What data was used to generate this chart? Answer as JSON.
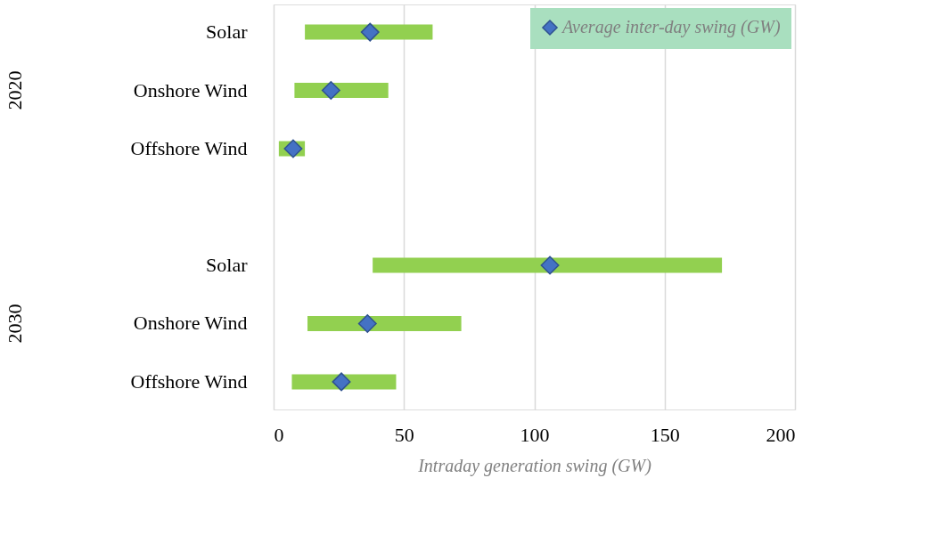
{
  "chart_data": {
    "type": "bar",
    "orientation": "horizontal",
    "categories": [
      "Solar",
      "Onshore Wind",
      "Offshore Wind",
      null,
      "Solar",
      "Onshore Wind",
      "Offshore Wind"
    ],
    "series": [
      {
        "color": "#92d050",
        "base": [
          12,
          8,
          2,
          null,
          38,
          13,
          7
        ],
        "values": [
          49,
          36,
          10,
          null,
          134,
          59,
          40
        ]
      },
      {
        "type": "scatter",
        "name": "Average inter-day swing (GW)",
        "color": "#4472c4",
        "marker": "diamond",
        "values": [
          37,
          22,
          7.5,
          null,
          106,
          36,
          26
        ]
      }
    ],
    "annotations": [
      "2020",
      "2030"
    ],
    "xlabel": "Intraday generation swing (GW)",
    "xlim": [
      0,
      200
    ],
    "xticks": [
      0,
      50,
      100,
      150,
      200
    ],
    "grid": "x",
    "legend": "top right"
  }
}
